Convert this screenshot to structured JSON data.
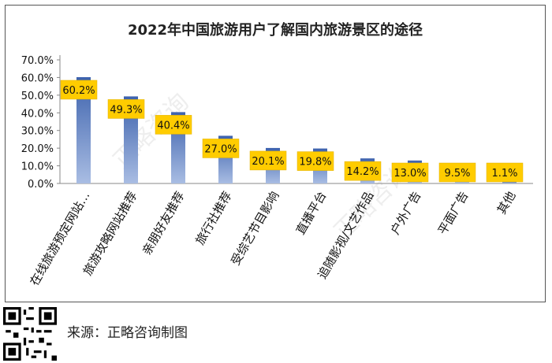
{
  "chart_data": {
    "type": "bar",
    "title": "2022年中国旅游用户了解国内旅游景区的途径",
    "categories": [
      "在线旅游预定网站…",
      "旅游攻略网站推荐",
      "亲朋好友推荐",
      "旅行社推荐",
      "受综艺节目影响",
      "直播平台",
      "追随影视/文艺作品",
      "户外广告",
      "平面广告",
      "其他"
    ],
    "values": [
      60.2,
      49.3,
      40.4,
      27.0,
      20.1,
      19.8,
      14.2,
      13.0,
      9.5,
      1.1
    ],
    "data_labels": [
      "60.2%",
      "49.3%",
      "40.4%",
      "27.0%",
      "20.1%",
      "19.8%",
      "14.2%",
      "13.0%",
      "9.5%",
      "1.1%"
    ],
    "y_ticks": [
      "0.0%",
      "10.0%",
      "20.0%",
      "30.0%",
      "40.0%",
      "50.0%",
      "60.0%",
      "70.0%"
    ],
    "ylim": [
      0,
      70
    ],
    "grid": false,
    "legend": "none",
    "bar_color": "#3d62ad",
    "label_box_color": "#ffcc00",
    "watermark_text": "正略咨询"
  },
  "footer": {
    "source": "来源：正略咨询制图",
    "qr_icon": "qr-code-icon"
  }
}
